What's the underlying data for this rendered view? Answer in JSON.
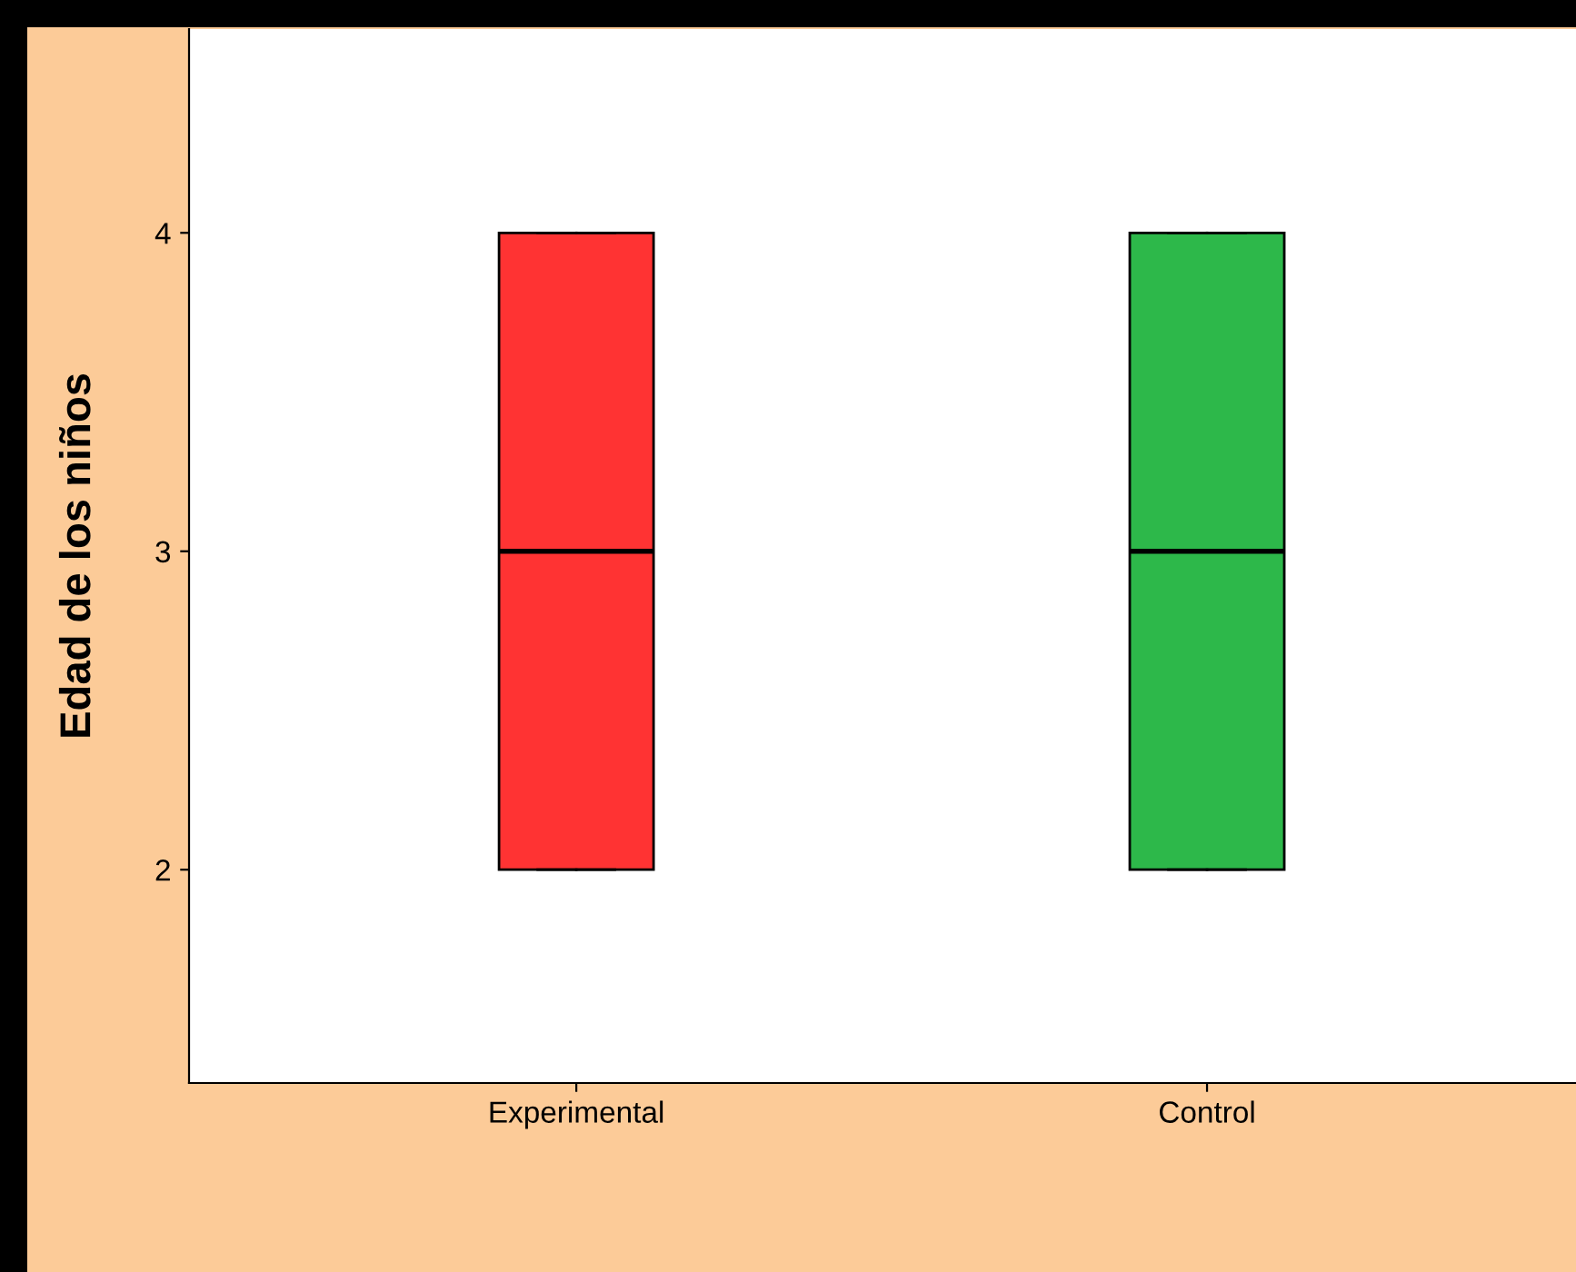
{
  "chart_data": {
    "type": "box",
    "ylabel": "Edad de los niños",
    "categories": [
      "Experimental",
      "Control"
    ],
    "boxes": [
      {
        "low": 2,
        "q1": 2,
        "median": 3,
        "q3": 4,
        "high": 4
      },
      {
        "low": 2,
        "q1": 2,
        "median": 3,
        "q3": 4,
        "high": 4
      }
    ],
    "colors": [
      "#ff3333",
      "#2db84a"
    ],
    "ylim": [
      1.33,
      4.64
    ],
    "yticks": [
      2,
      3,
      4
    ],
    "grid": false,
    "legend": false
  }
}
